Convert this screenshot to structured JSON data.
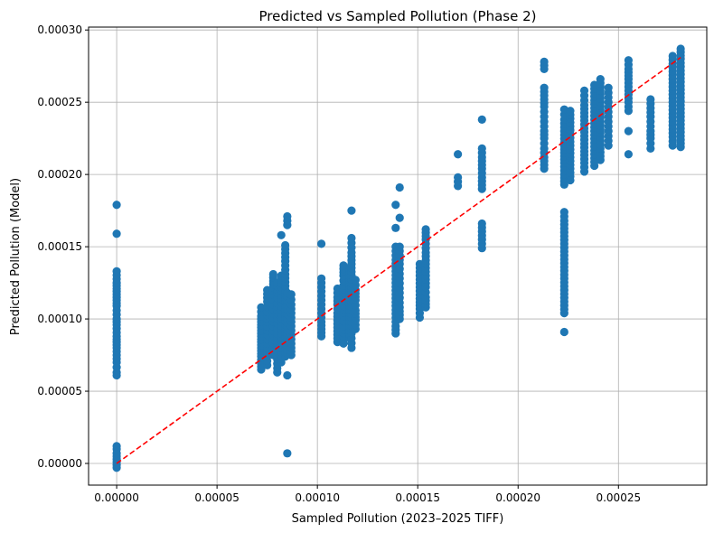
{
  "chart_data": {
    "type": "scatter",
    "title": "Predicted vs Sampled Pollution (Phase 2)",
    "xlabel": "Sampled Pollution (2023–2025 TIFF)",
    "ylabel": "Predicted Pollution (Model)",
    "xlim": [
      -1.4e-05,
      0.000294
    ],
    "ylim": [
      -1.5e-05,
      0.000302
    ],
    "x_ticks": [
      0,
      5e-05,
      0.0001,
      0.00015,
      0.0002,
      0.00025
    ],
    "x_tick_labels": [
      "0.00000",
      "0.00005",
      "0.00010",
      "0.00015",
      "0.00020",
      "0.00025"
    ],
    "y_ticks": [
      0,
      5e-05,
      0.0001,
      0.00015,
      0.0002,
      0.00025,
      0.0003
    ],
    "y_tick_labels": [
      "0.00000",
      "0.00005",
      "0.00010",
      "0.00015",
      "0.00020",
      "0.00025",
      "0.00030"
    ],
    "grid": true,
    "point_color": "#1f77b4",
    "reference_line": {
      "style": "dashed",
      "color": "#ff0000",
      "from": [
        0,
        0
      ],
      "to": [
        0.000281,
        0.000281
      ]
    },
    "clusters": [
      {
        "x": 0,
        "y_values": [
          0.000179,
          0.000159,
          0.000133,
          0.000125,
          0.000121,
          0.000117,
          0.000113,
          0.000109,
          0.000106,
          0.000103,
          0.0001,
          9.6e-05,
          8.8e-05,
          8.4e-05,
          8e-05,
          7.5e-05,
          7e-05,
          6.3e-05,
          6.1e-05,
          1.2e-05,
          1e-05,
          7e-06,
          5e-06,
          3e-06,
          1e-06,
          -1e-06,
          -3e-06
        ]
      },
      {
        "x": 7.2e-05,
        "y_values": [
          0.000108,
          0.000102,
          9.8e-05,
          9.4e-05,
          9e-05,
          8.6e-05,
          8.2e-05,
          7.8e-05,
          7.4e-05,
          6.9e-05,
          6.5e-05
        ]
      },
      {
        "x": 7.5e-05,
        "y_values": [
          0.00012,
          0.000112,
          0.000105,
          9.8e-05,
          9.2e-05,
          8.6e-05,
          8e-05,
          7.4e-05,
          6.8e-05
        ]
      },
      {
        "x": 7.8e-05,
        "y_values": [
          0.000131,
          0.000124,
          0.000117,
          0.00011,
          0.000104,
          9.8e-05,
          9.2e-05,
          8.6e-05,
          8e-05,
          7.5e-05
        ]
      },
      {
        "x": 8e-05,
        "y_values": [
          0.000125,
          0.000118,
          0.000111,
          0.000104,
          9.7e-05,
          9e-05,
          8.4e-05,
          7.8e-05,
          7.2e-05,
          6.3e-05
        ]
      },
      {
        "x": 8.2e-05,
        "y_values": [
          0.000158,
          0.00013,
          0.000122,
          0.000114,
          0.000106,
          9.8e-05,
          9e-05,
          8.3e-05,
          7.7e-05,
          7e-05
        ]
      },
      {
        "x": 8.4e-05,
        "y_values": [
          0.000151,
          0.00014,
          0.000131,
          0.00012,
          0.000112,
          0.000104,
          9.6e-05,
          8.8e-05,
          8e-05,
          7.4e-05
        ]
      },
      {
        "x": 8.5e-05,
        "y_values": [
          0.000171,
          0.000165,
          0.000118,
          0.00011,
          0.0001,
          9.2e-05,
          8.4e-05,
          7.6e-05,
          6.1e-05,
          7e-06
        ]
      },
      {
        "x": 8.7e-05,
        "y_values": [
          0.000117,
          0.00011,
          0.000104,
          9.8e-05,
          9.2e-05,
          8.6e-05,
          8e-05,
          7.5e-05
        ]
      },
      {
        "x": 0.000102,
        "y_values": [
          0.000152,
          0.000128,
          0.000122,
          0.000116,
          0.00011,
          0.000104,
          9.8e-05,
          9.3e-05,
          8.8e-05
        ]
      },
      {
        "x": 0.00011,
        "y_values": [
          0.000121,
          0.000115,
          0.00011,
          0.000104,
          9.9e-05,
          9.4e-05,
          8.9e-05,
          8.4e-05
        ]
      },
      {
        "x": 0.000113,
        "y_values": [
          0.000137,
          0.00013,
          0.000123,
          0.000116,
          0.000109,
          0.000102,
          9.5e-05,
          8.8e-05,
          8.3e-05
        ]
      },
      {
        "x": 0.000116,
        "y_values": [
          0.000135,
          0.000127,
          0.000119,
          0.000111,
          0.000104,
          9.8e-05,
          9.2e-05,
          8.7e-05
        ]
      },
      {
        "x": 0.000117,
        "y_values": [
          0.000175,
          0.000156,
          0.000146,
          0.000138,
          0.00013,
          0.000122,
          0.000114,
          0.000106,
          9.8e-05,
          9e-05,
          8e-05
        ]
      },
      {
        "x": 0.000119,
        "y_values": [
          0.000127,
          0.00012,
          0.000113,
          0.000106,
          9.9e-05,
          9.3e-05
        ]
      },
      {
        "x": 0.000139,
        "y_values": [
          0.000179,
          0.000163,
          0.00015,
          0.000141,
          0.000133,
          0.000125,
          0.000117,
          0.000109,
          0.000101,
          9.5e-05,
          9e-05
        ]
      },
      {
        "x": 0.000141,
        "y_values": [
          0.000191,
          0.00017,
          0.00015,
          0.000138,
          0.000128,
          0.000118,
          0.000108,
          0.0001
        ]
      },
      {
        "x": 0.000151,
        "y_values": [
          0.000138,
          0.00013,
          0.000122,
          0.000114,
          0.000107,
          0.000101
        ]
      },
      {
        "x": 0.000154,
        "y_values": [
          0.000162,
          0.000155,
          0.000146,
          0.000138,
          0.00013,
          0.000122,
          0.000115,
          0.000108
        ]
      },
      {
        "x": 0.00017,
        "y_values": [
          0.000214,
          0.000198,
          0.000192
        ]
      },
      {
        "x": 0.000182,
        "y_values": [
          0.000238,
          0.000218,
          0.000212,
          0.000204,
          0.000198,
          0.00019,
          0.000166,
          0.000155,
          0.000149
        ]
      },
      {
        "x": 0.000213,
        "y_values": [
          0.000278,
          0.000273,
          0.00026,
          0.000252,
          0.000247,
          0.00024,
          0.00023,
          0.000225,
          0.000218,
          0.000212,
          0.000204
        ]
      },
      {
        "x": 0.000223,
        "y_values": [
          0.000245,
          0.000238,
          0.00023,
          0.000222,
          0.000215,
          0.000208,
          0.0002,
          0.000193,
          0.000174,
          0.000168,
          0.00016,
          0.000152,
          0.000144,
          0.000136,
          0.000128,
          0.00012,
          0.000112,
          0.000104,
          9.1e-05
        ]
      },
      {
        "x": 0.000226,
        "y_values": [
          0.000244,
          0.000236,
          0.000228,
          0.00022,
          0.000212,
          0.000204,
          0.000196
        ]
      },
      {
        "x": 0.000233,
        "y_values": [
          0.000258,
          0.000248,
          0.00024,
          0.000232,
          0.000224,
          0.000216,
          0.000208,
          0.000202
        ]
      },
      {
        "x": 0.000238,
        "y_values": [
          0.000262,
          0.000254,
          0.000246,
          0.000238,
          0.00023,
          0.000222,
          0.000214,
          0.000206
        ]
      },
      {
        "x": 0.000241,
        "y_values": [
          0.000266,
          0.000258,
          0.00025,
          0.000242,
          0.000234,
          0.000226,
          0.000218,
          0.00021
        ]
      },
      {
        "x": 0.000245,
        "y_values": [
          0.00026,
          0.00025,
          0.00024,
          0.00023,
          0.00022
        ]
      },
      {
        "x": 0.000255,
        "y_values": [
          0.000279,
          0.000273,
          0.000266,
          0.000258,
          0.00025,
          0.000244,
          0.00023,
          0.000214
        ]
      },
      {
        "x": 0.000266,
        "y_values": [
          0.000252,
          0.000246,
          0.00024,
          0.00023,
          0.000225,
          0.000218
        ]
      },
      {
        "x": 0.000277,
        "y_values": [
          0.000282,
          0.000274,
          0.000266,
          0.000258,
          0.00025,
          0.000242,
          0.000234,
          0.000226,
          0.00022
        ]
      },
      {
        "x": 0.000281,
        "y_values": [
          0.000287,
          0.00028,
          0.000272,
          0.000264,
          0.000256,
          0.000248,
          0.00024,
          0.000232,
          0.000224,
          0.000219
        ]
      }
    ]
  }
}
